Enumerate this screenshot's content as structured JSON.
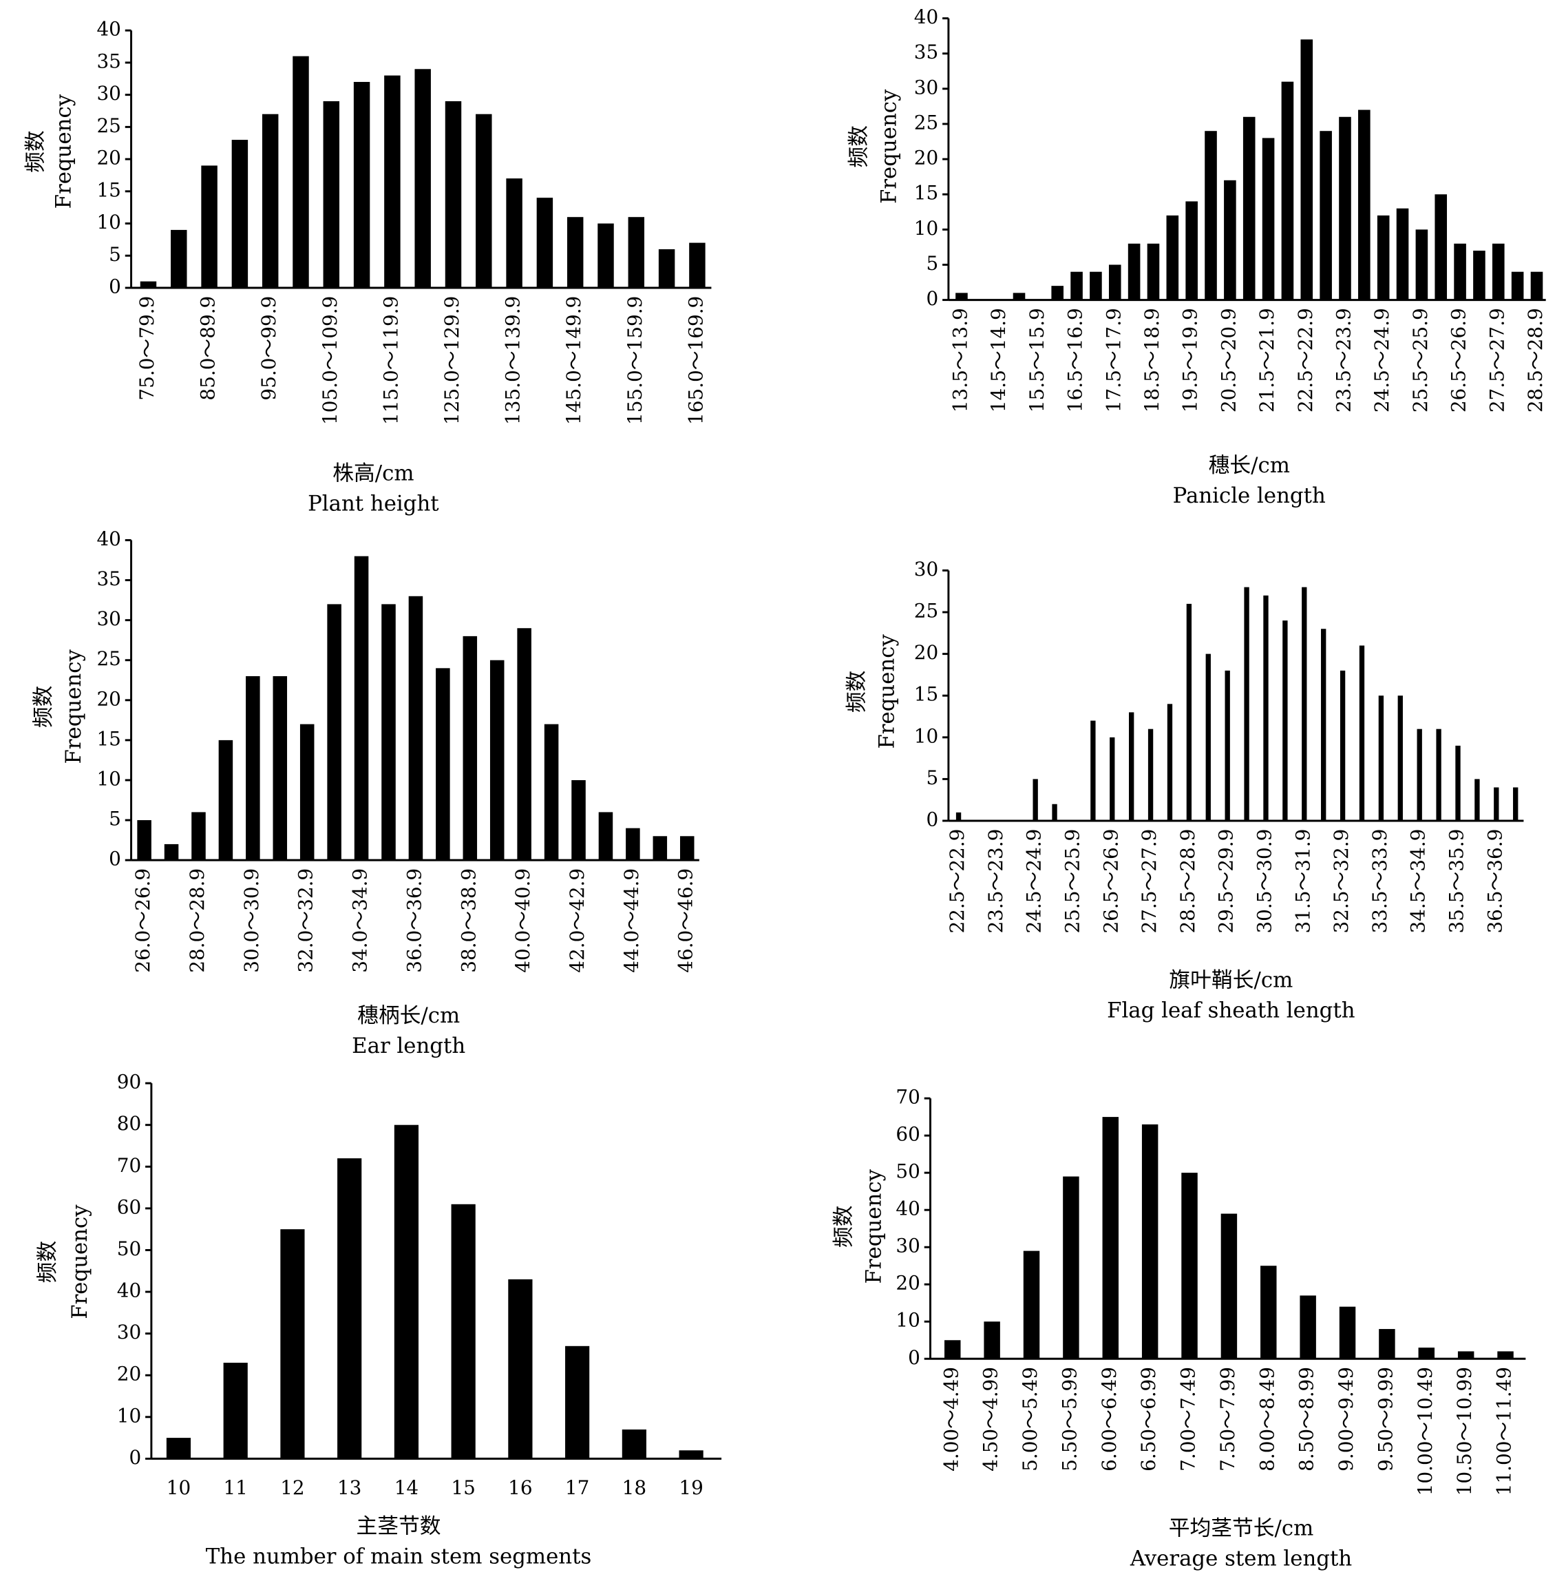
{
  "chart_data": [
    {
      "type": "bar",
      "xlabel": "株高/cm",
      "xlabel_en": "Plant height",
      "ylabel": "频数",
      "ylabel_en": "Frequency",
      "color": "#000000",
      "grid": false,
      "categories": [
        "75.0～79.9",
        null,
        "85.0～89.9",
        null,
        "95.0～99.9",
        null,
        "105.0～109.9",
        null,
        "115.0～119.9",
        null,
        "125.0～129.9",
        null,
        "135.0～139.9",
        null,
        "145.0～149.9",
        null,
        "155.0～159.9",
        null,
        "165.0～169.9"
      ],
      "values": [
        1,
        9,
        19,
        23,
        27,
        36,
        29,
        32,
        33,
        34,
        29,
        27,
        17,
        14,
        11,
        10,
        11,
        6,
        7
      ],
      "ylim": [
        0,
        40
      ],
      "yticks": [
        0,
        5,
        10,
        15,
        20,
        25,
        30,
        35,
        40
      ]
    },
    {
      "type": "bar",
      "xlabel": "穗长/cm",
      "xlabel_en": "Panicle length",
      "ylabel": "频数",
      "ylabel_en": "Frequency",
      "color": "#000000",
      "grid": false,
      "categories": [
        "13.5～13.9",
        null,
        "14.5～14.9",
        null,
        "15.5～15.9",
        null,
        "16.5～16.9",
        null,
        "17.5～17.9",
        null,
        "18.5～18.9",
        null,
        "19.5～19.9",
        null,
        "20.5～20.9",
        null,
        "21.5～21.9",
        null,
        "22.5～22.9",
        null,
        "23.5～23.9",
        null,
        "24.5～24.9",
        null,
        "25.5～25.9",
        null,
        "26.5～26.9",
        null,
        "27.5～27.9",
        null,
        "28.5～28.9"
      ],
      "values": [
        1,
        0,
        0,
        1,
        0,
        2,
        4,
        4,
        5,
        8,
        8,
        12,
        14,
        24,
        17,
        26,
        23,
        31,
        37,
        24,
        26,
        27,
        12,
        13,
        10,
        15,
        8,
        7,
        8,
        4,
        4
      ],
      "ylim": [
        0,
        40
      ],
      "yticks": [
        0,
        5,
        10,
        15,
        20,
        25,
        30,
        35,
        40
      ]
    },
    {
      "type": "bar",
      "xlabel": "穗柄长/cm",
      "xlabel_en": "Ear length",
      "ylabel": "频数",
      "ylabel_en": "Frequency",
      "color": "#000000",
      "grid": false,
      "categories": [
        "26.0～26.9",
        null,
        "28.0～28.9",
        null,
        "30.0～30.9",
        null,
        "32.0～32.9",
        null,
        "34.0～34.9",
        null,
        "36.0～36.9",
        null,
        "38.0～38.9",
        null,
        "40.0～40.9",
        null,
        "42.0～42.9",
        null,
        "44.0～44.9",
        null,
        "46.0～46.9"
      ],
      "values": [
        5,
        2,
        6,
        15,
        23,
        23,
        17,
        32,
        38,
        32,
        33,
        24,
        28,
        25,
        29,
        17,
        10,
        6,
        4,
        3,
        3
      ],
      "ylim": [
        0,
        40
      ],
      "yticks": [
        0,
        5,
        10,
        15,
        20,
        25,
        30,
        35,
        40
      ]
    },
    {
      "type": "bar",
      "xlabel": "旗叶鞘长/cm",
      "xlabel_en": "Flag leaf sheath length",
      "ylabel": "频数",
      "ylabel_en": "Frequency",
      "color": "#000000",
      "grid": false,
      "categories": [
        "22.5～22.9",
        null,
        "23.5～23.9",
        null,
        "24.5～24.9",
        null,
        "25.5～25.9",
        null,
        "26.5～26.9",
        null,
        "27.5～27.9",
        null,
        "28.5～28.9",
        null,
        "29.5～29.9",
        null,
        "30.5～30.9",
        null,
        "31.5～31.9",
        null,
        "32.5～32.9",
        null,
        "33.5～33.9",
        null,
        "34.5～34.9",
        null,
        "35.5～35.9",
        null,
        "36.5～36.9",
        null
      ],
      "values": [
        1,
        0,
        0,
        0,
        5,
        2,
        0,
        12,
        10,
        13,
        11,
        14,
        26,
        20,
        18,
        28,
        27,
        24,
        28,
        23,
        18,
        21,
        15,
        15,
        11,
        11,
        9,
        5,
        4,
        4
      ],
      "ylim": [
        0,
        30
      ],
      "yticks": [
        0,
        5,
        10,
        15,
        20,
        25,
        30
      ]
    },
    {
      "type": "bar",
      "xlabel": "主茎节数",
      "xlabel_en": "The number of main stem segments",
      "ylabel": "频数",
      "ylabel_en": "Frequency",
      "color": "#000000",
      "grid": false,
      "categories": [
        "10",
        "11",
        "12",
        "13",
        "14",
        "15",
        "16",
        "17",
        "18",
        "19"
      ],
      "values": [
        5,
        23,
        55,
        72,
        80,
        61,
        43,
        27,
        7,
        2
      ],
      "ylim": [
        0,
        90
      ],
      "yticks": [
        0,
        10,
        20,
        30,
        40,
        50,
        60,
        70,
        80,
        90
      ]
    },
    {
      "type": "bar",
      "xlabel": "平均茎节长/cm",
      "xlabel_en": "Average stem length",
      "ylabel": "频数",
      "ylabel_en": "Frequency",
      "color": "#000000",
      "grid": false,
      "categories": [
        "4.00～4.49",
        "4.50～4.99",
        "5.00～5.49",
        "5.50～5.99",
        "6.00～6.49",
        "6.50～6.99",
        "7.00～7.49",
        "7.50～7.99",
        "8.00～8.49",
        "8.50～8.99",
        "9.00～9.49",
        "9.50～9.99",
        "10.00～10.49",
        "10.50～10.99",
        "11.00～11.49"
      ],
      "values": [
        5,
        10,
        29,
        49,
        65,
        63,
        50,
        39,
        25,
        17,
        14,
        8,
        3,
        2,
        2
      ],
      "ylim": [
        0,
        70
      ],
      "yticks": [
        0,
        10,
        20,
        30,
        40,
        50,
        60,
        70
      ]
    }
  ]
}
